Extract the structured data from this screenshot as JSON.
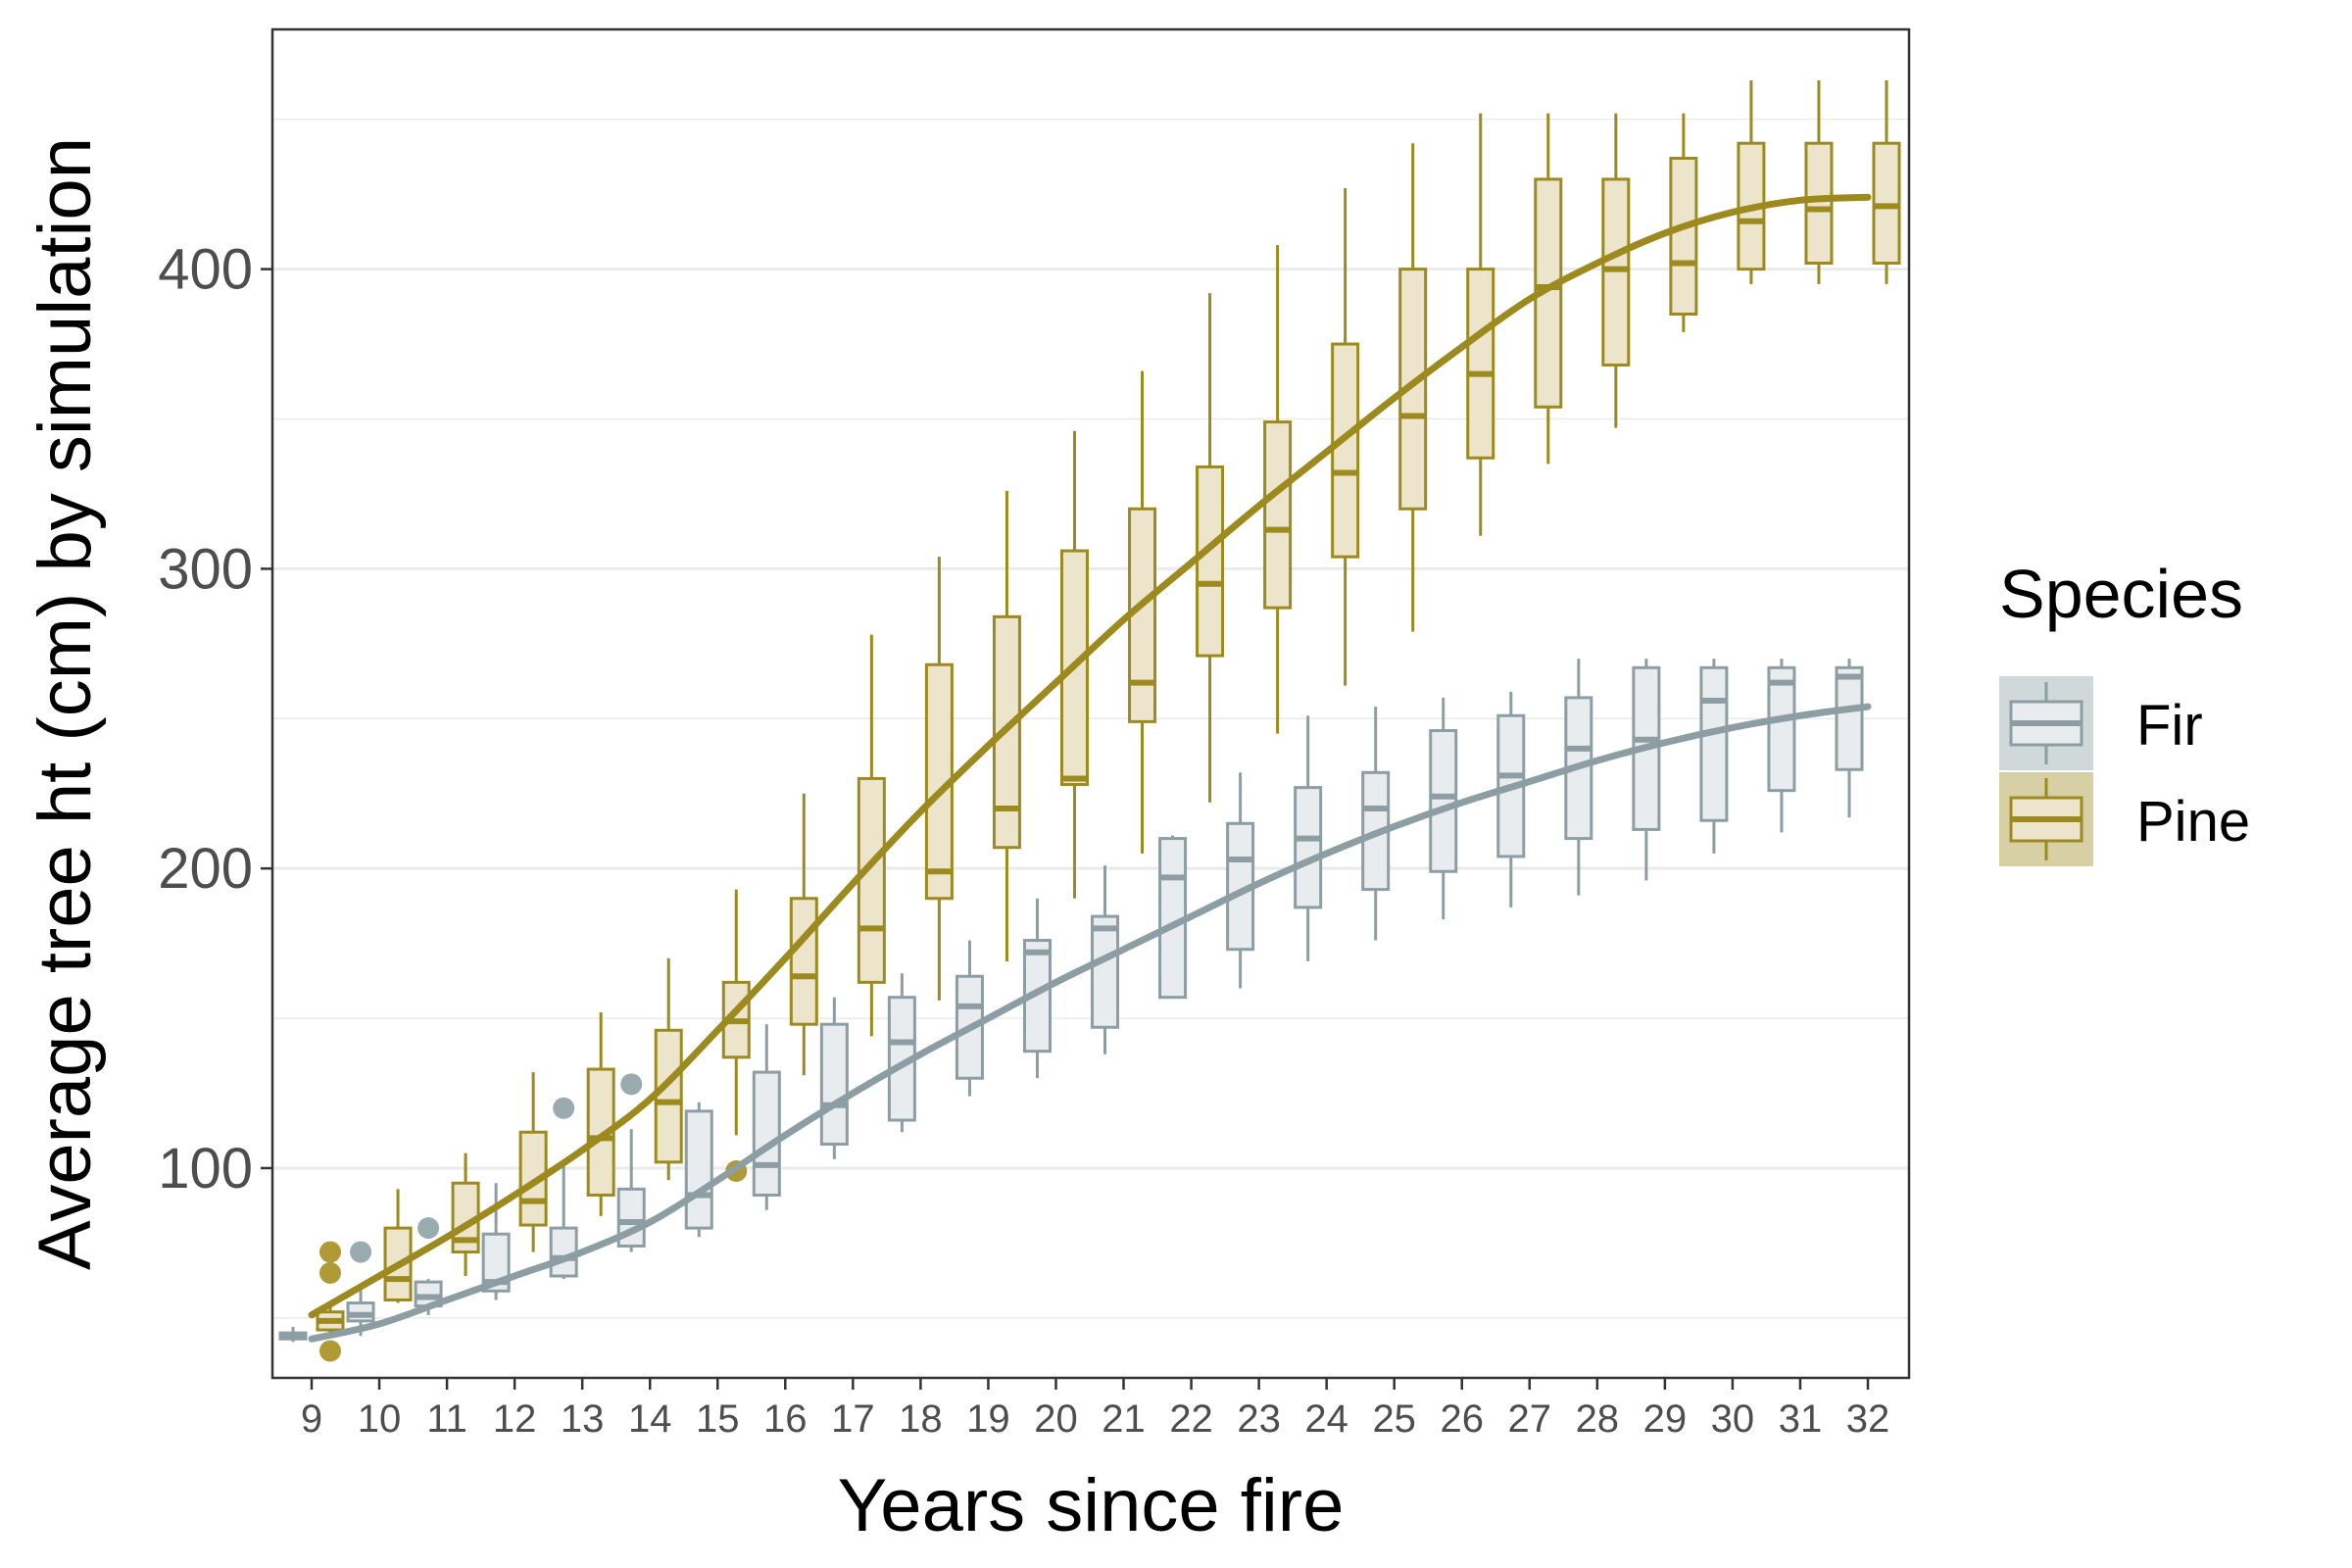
{
  "chart_data": {
    "type": "box",
    "title": "",
    "xlabel": "Years since fire",
    "ylabel": "Average tree ht (cm) by simulation",
    "x_categories": [
      "9",
      "10",
      "11",
      "12",
      "13",
      "14",
      "15",
      "16",
      "17",
      "18",
      "19",
      "20",
      "21",
      "22",
      "23",
      "24",
      "25",
      "26",
      "27",
      "28",
      "29",
      "30",
      "31",
      "32"
    ],
    "ylim": [
      30,
      480
    ],
    "y_ticks": [
      100,
      200,
      300,
      400
    ],
    "grid": true,
    "legend": {
      "title": "Species",
      "placement": "right",
      "entries": [
        "Fir",
        "Pine"
      ]
    },
    "colors": {
      "Fir": "#8c9ea3",
      "Pine": "#9c8a1f",
      "Fir_fill": "#e9ecee",
      "Pine_fill": "#ede5cb",
      "Fir_outlier": "#9aabb0",
      "Pine_outlier": "#b09a35"
    },
    "series": [
      {
        "name": "Fir",
        "boxes": [
          {
            "x": "9",
            "min": 42,
            "q1": 43,
            "median": 44,
            "q3": 45,
            "max": 47
          },
          {
            "x": "10",
            "min": 44,
            "q1": 49,
            "median": 51,
            "q3": 55,
            "max": 60
          },
          {
            "x": "11",
            "min": 51,
            "q1": 54,
            "median": 57,
            "q3": 62,
            "max": 63
          },
          {
            "x": "12",
            "min": 56,
            "q1": 59,
            "median": 62,
            "q3": 78,
            "max": 95
          },
          {
            "x": "13",
            "min": 63,
            "q1": 64,
            "median": 70,
            "q3": 80,
            "max": 101
          },
          {
            "x": "14",
            "min": 72,
            "q1": 74,
            "median": 82,
            "q3": 93,
            "max": 113
          },
          {
            "x": "15",
            "min": 77,
            "q1": 80,
            "median": 91,
            "q3": 119,
            "max": 122
          },
          {
            "x": "16",
            "min": 86,
            "q1": 91,
            "median": 101,
            "q3": 132,
            "max": 148
          },
          {
            "x": "17",
            "min": 103,
            "q1": 108,
            "median": 121,
            "q3": 148,
            "max": 157
          },
          {
            "x": "18",
            "min": 112,
            "q1": 116,
            "median": 142,
            "q3": 157,
            "max": 165
          },
          {
            "x": "19",
            "min": 124,
            "q1": 130,
            "median": 154,
            "q3": 164,
            "max": 176
          },
          {
            "x": "20",
            "min": 130,
            "q1": 139,
            "median": 172,
            "q3": 176,
            "max": 190
          },
          {
            "x": "21",
            "min": 138,
            "q1": 147,
            "median": 180,
            "q3": 184,
            "max": 201
          },
          {
            "x": "22",
            "min": 157,
            "q1": 157,
            "median": 197,
            "q3": 210,
            "max": 211
          },
          {
            "x": "23",
            "min": 160,
            "q1": 173,
            "median": 203,
            "q3": 215,
            "max": 232
          },
          {
            "x": "24",
            "min": 169,
            "q1": 187,
            "median": 210,
            "q3": 227,
            "max": 251
          },
          {
            "x": "25",
            "min": 176,
            "q1": 193,
            "median": 220,
            "q3": 232,
            "max": 254
          },
          {
            "x": "26",
            "min": 183,
            "q1": 199,
            "median": 224,
            "q3": 246,
            "max": 257
          },
          {
            "x": "27",
            "min": 187,
            "q1": 204,
            "median": 231,
            "q3": 251,
            "max": 259
          },
          {
            "x": "28",
            "min": 191,
            "q1": 210,
            "median": 240,
            "q3": 257,
            "max": 270
          },
          {
            "x": "29",
            "min": 196,
            "q1": 213,
            "median": 243,
            "q3": 267,
            "max": 270
          },
          {
            "x": "30",
            "min": 205,
            "q1": 216,
            "median": 256,
            "q3": 267,
            "max": 270
          },
          {
            "x": "31",
            "min": 212,
            "q1": 226,
            "median": 262,
            "q3": 267,
            "max": 270
          },
          {
            "x": "32",
            "min": 217,
            "q1": 233,
            "median": 264,
            "q3": 267,
            "max": 270
          }
        ],
        "outliers": [
          {
            "x": "10",
            "y": 72
          },
          {
            "x": "11",
            "y": 80
          },
          {
            "x": "13",
            "y": 120
          },
          {
            "x": "14",
            "y": 128
          }
        ],
        "trend": [
          [
            9,
            43
          ],
          [
            10,
            48
          ],
          [
            11,
            56
          ],
          [
            12,
            64
          ],
          [
            13,
            72
          ],
          [
            14,
            82
          ],
          [
            15,
            96
          ],
          [
            16,
            111
          ],
          [
            17,
            125
          ],
          [
            18,
            138
          ],
          [
            19,
            150
          ],
          [
            20,
            162
          ],
          [
            21,
            173
          ],
          [
            22,
            184
          ],
          [
            23,
            195
          ],
          [
            24,
            205
          ],
          [
            25,
            214
          ],
          [
            26,
            222
          ],
          [
            27,
            229
          ],
          [
            28,
            236
          ],
          [
            29,
            242
          ],
          [
            30,
            247
          ],
          [
            31,
            251
          ],
          [
            32,
            254
          ]
        ]
      },
      {
        "name": "Pine",
        "boxes": [
          {
            "x": "9",
            "min": 44,
            "q1": 46,
            "median": 49,
            "q3": 52,
            "max": 54
          },
          {
            "x": "10",
            "min": 55,
            "q1": 56,
            "median": 63,
            "q3": 80,
            "max": 93
          },
          {
            "x": "11",
            "min": 64,
            "q1": 72,
            "median": 76,
            "q3": 95,
            "max": 105
          },
          {
            "x": "12",
            "min": 72,
            "q1": 81,
            "median": 89,
            "q3": 112,
            "max": 132
          },
          {
            "x": "13",
            "min": 84,
            "q1": 91,
            "median": 110,
            "q3": 133,
            "max": 152
          },
          {
            "x": "14",
            "min": 96,
            "q1": 102,
            "median": 122,
            "q3": 146,
            "max": 170
          },
          {
            "x": "15",
            "min": 111,
            "q1": 137,
            "median": 149,
            "q3": 162,
            "max": 193
          },
          {
            "x": "16",
            "min": 131,
            "q1": 148,
            "median": 164,
            "q3": 190,
            "max": 225
          },
          {
            "x": "17",
            "min": 144,
            "q1": 162,
            "median": 180,
            "q3": 230,
            "max": 278
          },
          {
            "x": "18",
            "min": 156,
            "q1": 190,
            "median": 199,
            "q3": 268,
            "max": 304
          },
          {
            "x": "19",
            "min": 169,
            "q1": 207,
            "median": 220,
            "q3": 284,
            "max": 326
          },
          {
            "x": "20",
            "min": 190,
            "q1": 228,
            "median": 230,
            "q3": 306,
            "max": 346
          },
          {
            "x": "21",
            "min": 205,
            "q1": 249,
            "median": 262,
            "q3": 320,
            "max": 366
          },
          {
            "x": "22",
            "min": 222,
            "q1": 271,
            "median": 295,
            "q3": 334,
            "max": 392
          },
          {
            "x": "23",
            "min": 245,
            "q1": 287,
            "median": 313,
            "q3": 349,
            "max": 408
          },
          {
            "x": "24",
            "min": 261,
            "q1": 304,
            "median": 332,
            "q3": 375,
            "max": 427
          },
          {
            "x": "25",
            "min": 279,
            "q1": 320,
            "median": 351,
            "q3": 400,
            "max": 442
          },
          {
            "x": "26",
            "min": 311,
            "q1": 337,
            "median": 365,
            "q3": 400,
            "max": 452
          },
          {
            "x": "27",
            "min": 335,
            "q1": 354,
            "median": 394,
            "q3": 430,
            "max": 452
          },
          {
            "x": "28",
            "min": 347,
            "q1": 368,
            "median": 400,
            "q3": 430,
            "max": 452
          },
          {
            "x": "29",
            "min": 379,
            "q1": 385,
            "median": 402,
            "q3": 437,
            "max": 452
          },
          {
            "x": "30",
            "min": 395,
            "q1": 400,
            "median": 416,
            "q3": 442,
            "max": 463
          },
          {
            "x": "31",
            "min": 395,
            "q1": 402,
            "median": 420,
            "q3": 442,
            "max": 463
          },
          {
            "x": "32",
            "min": 395,
            "q1": 402,
            "median": 421,
            "q3": 442,
            "max": 463
          }
        ],
        "outliers": [
          {
            "x": "9",
            "y": 39
          },
          {
            "x": "9",
            "y": 65
          },
          {
            "x": "9",
            "y": 72
          },
          {
            "x": "15",
            "y": 99
          }
        ],
        "trend": [
          [
            9,
            51
          ],
          [
            10,
            64
          ],
          [
            11,
            77
          ],
          [
            12,
            91
          ],
          [
            13,
            106
          ],
          [
            14,
            123
          ],
          [
            15,
            146
          ],
          [
            16,
            170
          ],
          [
            17,
            195
          ],
          [
            18,
            219
          ],
          [
            19,
            241
          ],
          [
            20,
            262
          ],
          [
            21,
            283
          ],
          [
            22,
            302
          ],
          [
            23,
            321
          ],
          [
            24,
            339
          ],
          [
            25,
            357
          ],
          [
            26,
            374
          ],
          [
            27,
            390
          ],
          [
            28,
            402
          ],
          [
            29,
            412
          ],
          [
            30,
            419
          ],
          [
            31,
            423
          ],
          [
            32,
            424
          ]
        ]
      }
    ]
  }
}
